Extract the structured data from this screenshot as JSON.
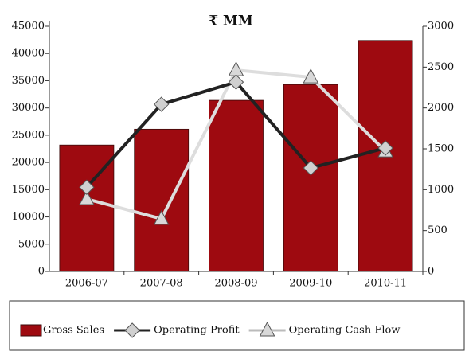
{
  "chart_data": {
    "type": "bar-line",
    "title": "₹ MM",
    "categories": [
      "2006-07",
      "2007-08",
      "2008-09",
      "2009-10",
      "2010-11"
    ],
    "series": [
      {
        "name": "Gross Sales",
        "type": "bar",
        "color": "#9e0a10",
        "values": [
          23200,
          26100,
          31400,
          34300,
          42400
        ]
      },
      {
        "name": "Operating Profit",
        "type": "line",
        "marker": "diamond",
        "axis": "y2",
        "color": "#222222",
        "values": [
          1030,
          2045,
          2317,
          1266,
          1510
        ]
      },
      {
        "name": "Operating Cash Flow",
        "type": "line",
        "marker": "triangle",
        "axis": "y2",
        "color": "#dddddd",
        "values": [
          886,
          643,
          2463,
          2376,
          1470
        ]
      }
    ],
    "ylim": [
      0,
      45000
    ],
    "yticks": [
      0,
      5000,
      10000,
      15000,
      20000,
      25000,
      30000,
      35000,
      40000,
      45000
    ],
    "y2lim": [
      0,
      3000
    ],
    "y2ticks": [
      0,
      500,
      1000,
      1500,
      2000,
      2500,
      3000
    ],
    "legend": "bottom"
  }
}
